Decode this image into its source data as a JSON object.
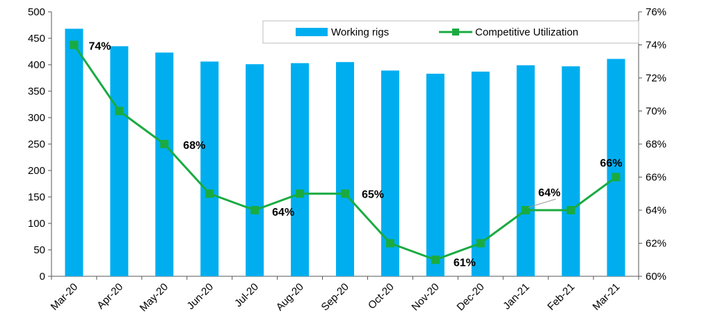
{
  "chart_data": {
    "type": "bar+line",
    "categories": [
      "Mar-20",
      "Apr-20",
      "May-20",
      "Jun-20",
      "Jul-20",
      "Aug-20",
      "Sep-20",
      "Oct-20",
      "Nov-20",
      "Dec-20",
      "Jan-21",
      "Feb-21",
      "Mar-21"
    ],
    "series": [
      {
        "name": "Working rigs",
        "type": "bar",
        "axis": "left",
        "color": "#00AEEF",
        "values": [
          468,
          435,
          423,
          406,
          401,
          403,
          405,
          389,
          383,
          387,
          399,
          397,
          411
        ]
      },
      {
        "name": "Competitive Utilization",
        "type": "line",
        "axis": "right",
        "color": "#1AAB40",
        "values": [
          74,
          70,
          68,
          65,
          64,
          65,
          65,
          62,
          61,
          62,
          64,
          64,
          66
        ]
      }
    ],
    "left_axis": {
      "min": 0,
      "max": 500,
      "step": 50,
      "ticks": [
        "0",
        "50",
        "100",
        "150",
        "200",
        "250",
        "300",
        "350",
        "400",
        "450",
        "500"
      ]
    },
    "right_axis": {
      "min": 60,
      "max": 76,
      "step": 2,
      "ticks": [
        "60%",
        "62%",
        "64%",
        "66%",
        "68%",
        "70%",
        "72%",
        "74%",
        "76%"
      ]
    },
    "data_labels": [
      {
        "index": 0,
        "text": "74%"
      },
      {
        "index": 2,
        "text": "68%"
      },
      {
        "index": 4,
        "text": "64%"
      },
      {
        "index": 6,
        "text": "65%"
      },
      {
        "index": 8,
        "text": "61%"
      },
      {
        "index": 10,
        "text": "64%"
      },
      {
        "index": 12,
        "text": "66%"
      }
    ],
    "legend": {
      "placement": "top-right",
      "items": [
        "Working rigs",
        "Competitive Utilization"
      ]
    },
    "grid": false,
    "title": "",
    "xlabel": "",
    "ylabel": ""
  }
}
